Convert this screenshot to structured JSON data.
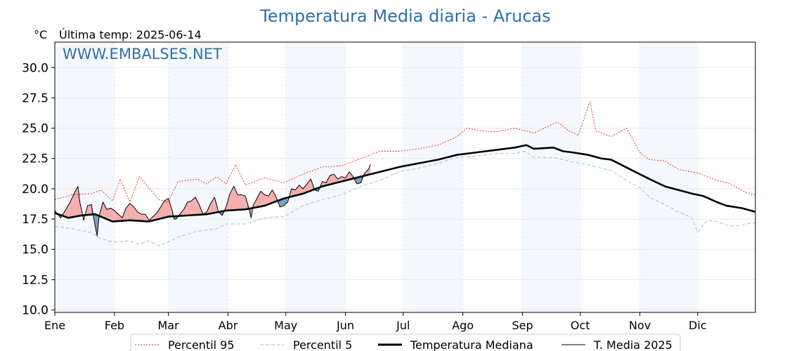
{
  "chart_data": {
    "type": "line",
    "title": "Temperatura Media diaria - Arucas",
    "unit_label": "°C",
    "last_temp_label": "Última temp: 2025-06-14",
    "watermark": "WWW.EMBALSES.NET",
    "ylim": [
      9.8,
      32.1
    ],
    "y_ticks": [
      10.0,
      12.5,
      15.0,
      17.5,
      20.0,
      22.5,
      25.0,
      27.5,
      30.0
    ],
    "x_tick_labels": [
      "Ene",
      "Feb",
      "Mar",
      "Abr",
      "May",
      "Jun",
      "Jul",
      "Ago",
      "Sep",
      "Oct",
      "Nov",
      "Dic"
    ],
    "month_days": [
      31,
      28,
      31,
      30,
      31,
      30,
      31,
      31,
      30,
      31,
      30,
      31
    ],
    "grid": true,
    "legend_position": "bottom-center",
    "colors": {
      "p95": "#e8201e",
      "p5": "#9fd0e0",
      "median": "#000000",
      "current": "#000000",
      "above_fill": "#f4a6a6",
      "below_fill": "#6f94b8",
      "band": "#f4f8fc",
      "title": "#2f6fa7"
    },
    "series": [
      {
        "name": "Percentil 95",
        "key": "p95",
        "points": [
          [
            1,
            19.1
          ],
          [
            10,
            19.5
          ],
          [
            20,
            19.6
          ],
          [
            25,
            19.9
          ],
          [
            31,
            19.0
          ],
          [
            35,
            20.8
          ],
          [
            40,
            18.9
          ],
          [
            45,
            21.0
          ],
          [
            55,
            19.1
          ],
          [
            60,
            18.9
          ],
          [
            65,
            20.6
          ],
          [
            75,
            20.8
          ],
          [
            80,
            20.4
          ],
          [
            85,
            21.0
          ],
          [
            90,
            20.4
          ],
          [
            95,
            22.0
          ],
          [
            100,
            20.3
          ],
          [
            110,
            20.9
          ],
          [
            120,
            20.5
          ],
          [
            130,
            21.2
          ],
          [
            140,
            21.8
          ],
          [
            150,
            21.9
          ],
          [
            160,
            22.5
          ],
          [
            170,
            23.1
          ],
          [
            180,
            23.1
          ],
          [
            190,
            23.3
          ],
          [
            200,
            23.6
          ],
          [
            210,
            24.3
          ],
          [
            215,
            25.0
          ],
          [
            222,
            24.8
          ],
          [
            230,
            24.7
          ],
          [
            240,
            25.0
          ],
          [
            250,
            24.6
          ],
          [
            262,
            25.5
          ],
          [
            268,
            24.8
          ],
          [
            273,
            24.4
          ],
          [
            279,
            27.2
          ],
          [
            282,
            24.8
          ],
          [
            290,
            24.3
          ],
          [
            298,
            25.0
          ],
          [
            305,
            23.0
          ],
          [
            310,
            22.4
          ],
          [
            318,
            22.3
          ],
          [
            325,
            21.6
          ],
          [
            335,
            21.3
          ],
          [
            345,
            20.7
          ],
          [
            352,
            20.4
          ],
          [
            360,
            19.7
          ],
          [
            365,
            19.5
          ]
        ]
      },
      {
        "name": "Percentil 5",
        "key": "p5",
        "points": [
          [
            1,
            16.9
          ],
          [
            10,
            16.7
          ],
          [
            20,
            16.4
          ],
          [
            25,
            15.9
          ],
          [
            31,
            15.6
          ],
          [
            40,
            15.7
          ],
          [
            45,
            15.4
          ],
          [
            50,
            15.7
          ],
          [
            55,
            15.3
          ],
          [
            60,
            15.6
          ],
          [
            65,
            16.0
          ],
          [
            75,
            16.5
          ],
          [
            85,
            16.7
          ],
          [
            90,
            17.1
          ],
          [
            100,
            17.1
          ],
          [
            110,
            17.6
          ],
          [
            120,
            17.7
          ],
          [
            130,
            18.6
          ],
          [
            140,
            19.1
          ],
          [
            150,
            19.5
          ],
          [
            160,
            20.2
          ],
          [
            170,
            20.7
          ],
          [
            180,
            21.4
          ],
          [
            190,
            21.7
          ],
          [
            200,
            22.1
          ],
          [
            210,
            22.6
          ],
          [
            220,
            22.7
          ],
          [
            230,
            22.9
          ],
          [
            240,
            22.9
          ],
          [
            245,
            23.1
          ],
          [
            250,
            22.6
          ],
          [
            260,
            22.6
          ],
          [
            270,
            22.2
          ],
          [
            275,
            22.1
          ],
          [
            280,
            21.9
          ],
          [
            290,
            21.5
          ],
          [
            300,
            20.5
          ],
          [
            305,
            20.1
          ],
          [
            310,
            19.3
          ],
          [
            318,
            18.7
          ],
          [
            325,
            18.1
          ],
          [
            332,
            17.6
          ],
          [
            335,
            16.4
          ],
          [
            340,
            17.4
          ],
          [
            345,
            17.3
          ],
          [
            350,
            17.0
          ],
          [
            355,
            16.9
          ],
          [
            360,
            17.1
          ],
          [
            365,
            17.2
          ]
        ]
      },
      {
        "name": "Temperatura Mediana",
        "key": "median",
        "points": [
          [
            1,
            18.0
          ],
          [
            8,
            17.6
          ],
          [
            15,
            17.8
          ],
          [
            22,
            17.9
          ],
          [
            31,
            17.3
          ],
          [
            40,
            17.4
          ],
          [
            50,
            17.3
          ],
          [
            60,
            17.7
          ],
          [
            70,
            17.8
          ],
          [
            80,
            17.9
          ],
          [
            90,
            18.2
          ],
          [
            100,
            18.3
          ],
          [
            110,
            18.6
          ],
          [
            120,
            19.2
          ],
          [
            130,
            19.6
          ],
          [
            140,
            20.2
          ],
          [
            150,
            20.6
          ],
          [
            160,
            21.0
          ],
          [
            170,
            21.4
          ],
          [
            180,
            21.8
          ],
          [
            190,
            22.1
          ],
          [
            200,
            22.4
          ],
          [
            210,
            22.8
          ],
          [
            220,
            23.0
          ],
          [
            230,
            23.2
          ],
          [
            240,
            23.4
          ],
          [
            246,
            23.6
          ],
          [
            250,
            23.3
          ],
          [
            260,
            23.4
          ],
          [
            265,
            23.1
          ],
          [
            270,
            23.0
          ],
          [
            278,
            22.8
          ],
          [
            285,
            22.5
          ],
          [
            290,
            22.4
          ],
          [
            300,
            21.6
          ],
          [
            310,
            20.8
          ],
          [
            318,
            20.2
          ],
          [
            325,
            19.9
          ],
          [
            332,
            19.6
          ],
          [
            338,
            19.4
          ],
          [
            345,
            18.9
          ],
          [
            350,
            18.6
          ],
          [
            358,
            18.4
          ],
          [
            365,
            18.1
          ]
        ]
      },
      {
        "name": "T. Media 2025",
        "key": "current",
        "points": [
          [
            1,
            18.2
          ],
          [
            4,
            17.6
          ],
          [
            6,
            18.1
          ],
          [
            9,
            18.9
          ],
          [
            11,
            19.6
          ],
          [
            12,
            19.9
          ],
          [
            13,
            20.2
          ],
          [
            14,
            18.9
          ],
          [
            15,
            18.2
          ],
          [
            16,
            17.4
          ],
          [
            18,
            18.6
          ],
          [
            20,
            18.7
          ],
          [
            22,
            16.9
          ],
          [
            23,
            16.1
          ],
          [
            24,
            17.7
          ],
          [
            26,
            18.9
          ],
          [
            28,
            18.3
          ],
          [
            30,
            18.4
          ],
          [
            32,
            18.2
          ],
          [
            34,
            17.9
          ],
          [
            36,
            17.6
          ],
          [
            38,
            18.4
          ],
          [
            40,
            18.8
          ],
          [
            42,
            18.5
          ],
          [
            44,
            18.1
          ],
          [
            46,
            17.9
          ],
          [
            48,
            17.9
          ],
          [
            50,
            17.4
          ],
          [
            52,
            17.7
          ],
          [
            54,
            18.0
          ],
          [
            56,
            18.5
          ],
          [
            58,
            19.0
          ],
          [
            60,
            19.2
          ],
          [
            62,
            18.2
          ],
          [
            63,
            17.5
          ],
          [
            64,
            17.5
          ],
          [
            66,
            17.9
          ],
          [
            68,
            18.3
          ],
          [
            70,
            18.9
          ],
          [
            72,
            19.0
          ],
          [
            74,
            19.3
          ],
          [
            76,
            18.7
          ],
          [
            78,
            17.9
          ],
          [
            80,
            18.1
          ],
          [
            82,
            18.8
          ],
          [
            84,
            19.3
          ],
          [
            86,
            18.1
          ],
          [
            88,
            17.8
          ],
          [
            90,
            18.5
          ],
          [
            92,
            19.6
          ],
          [
            94,
            20.2
          ],
          [
            96,
            19.5
          ],
          [
            98,
            19.5
          ],
          [
            100,
            19.4
          ],
          [
            102,
            18.3
          ],
          [
            103,
            17.6
          ],
          [
            104,
            18.6
          ],
          [
            106,
            19.2
          ],
          [
            108,
            19.8
          ],
          [
            110,
            19.5
          ],
          [
            112,
            19.4
          ],
          [
            114,
            19.9
          ],
          [
            116,
            19.3
          ],
          [
            118,
            18.5
          ],
          [
            120,
            18.6
          ],
          [
            122,
            18.9
          ],
          [
            124,
            20.0
          ],
          [
            126,
            19.9
          ],
          [
            128,
            20.3
          ],
          [
            130,
            20.0
          ],
          [
            132,
            20.4
          ],
          [
            134,
            20.8
          ],
          [
            136,
            19.9
          ],
          [
            138,
            19.8
          ],
          [
            140,
            20.6
          ],
          [
            142,
            20.5
          ],
          [
            144,
            21.1
          ],
          [
            146,
            21.2
          ],
          [
            148,
            20.8
          ],
          [
            150,
            21.0
          ],
          [
            152,
            20.9
          ],
          [
            154,
            21.4
          ],
          [
            156,
            21.0
          ],
          [
            158,
            20.4
          ],
          [
            160,
            20.5
          ],
          [
            162,
            21.3
          ],
          [
            164,
            21.6
          ],
          [
            165,
            22.0
          ]
        ]
      }
    ]
  },
  "legend": {
    "items": [
      {
        "label": "Percentil 95",
        "style": "dashed-red"
      },
      {
        "label": "Percentil 5",
        "style": "dashed-blue"
      },
      {
        "label": "Temperatura Mediana",
        "style": "thick-black"
      },
      {
        "label": "T. Media 2025",
        "style": "thin-black"
      }
    ]
  }
}
